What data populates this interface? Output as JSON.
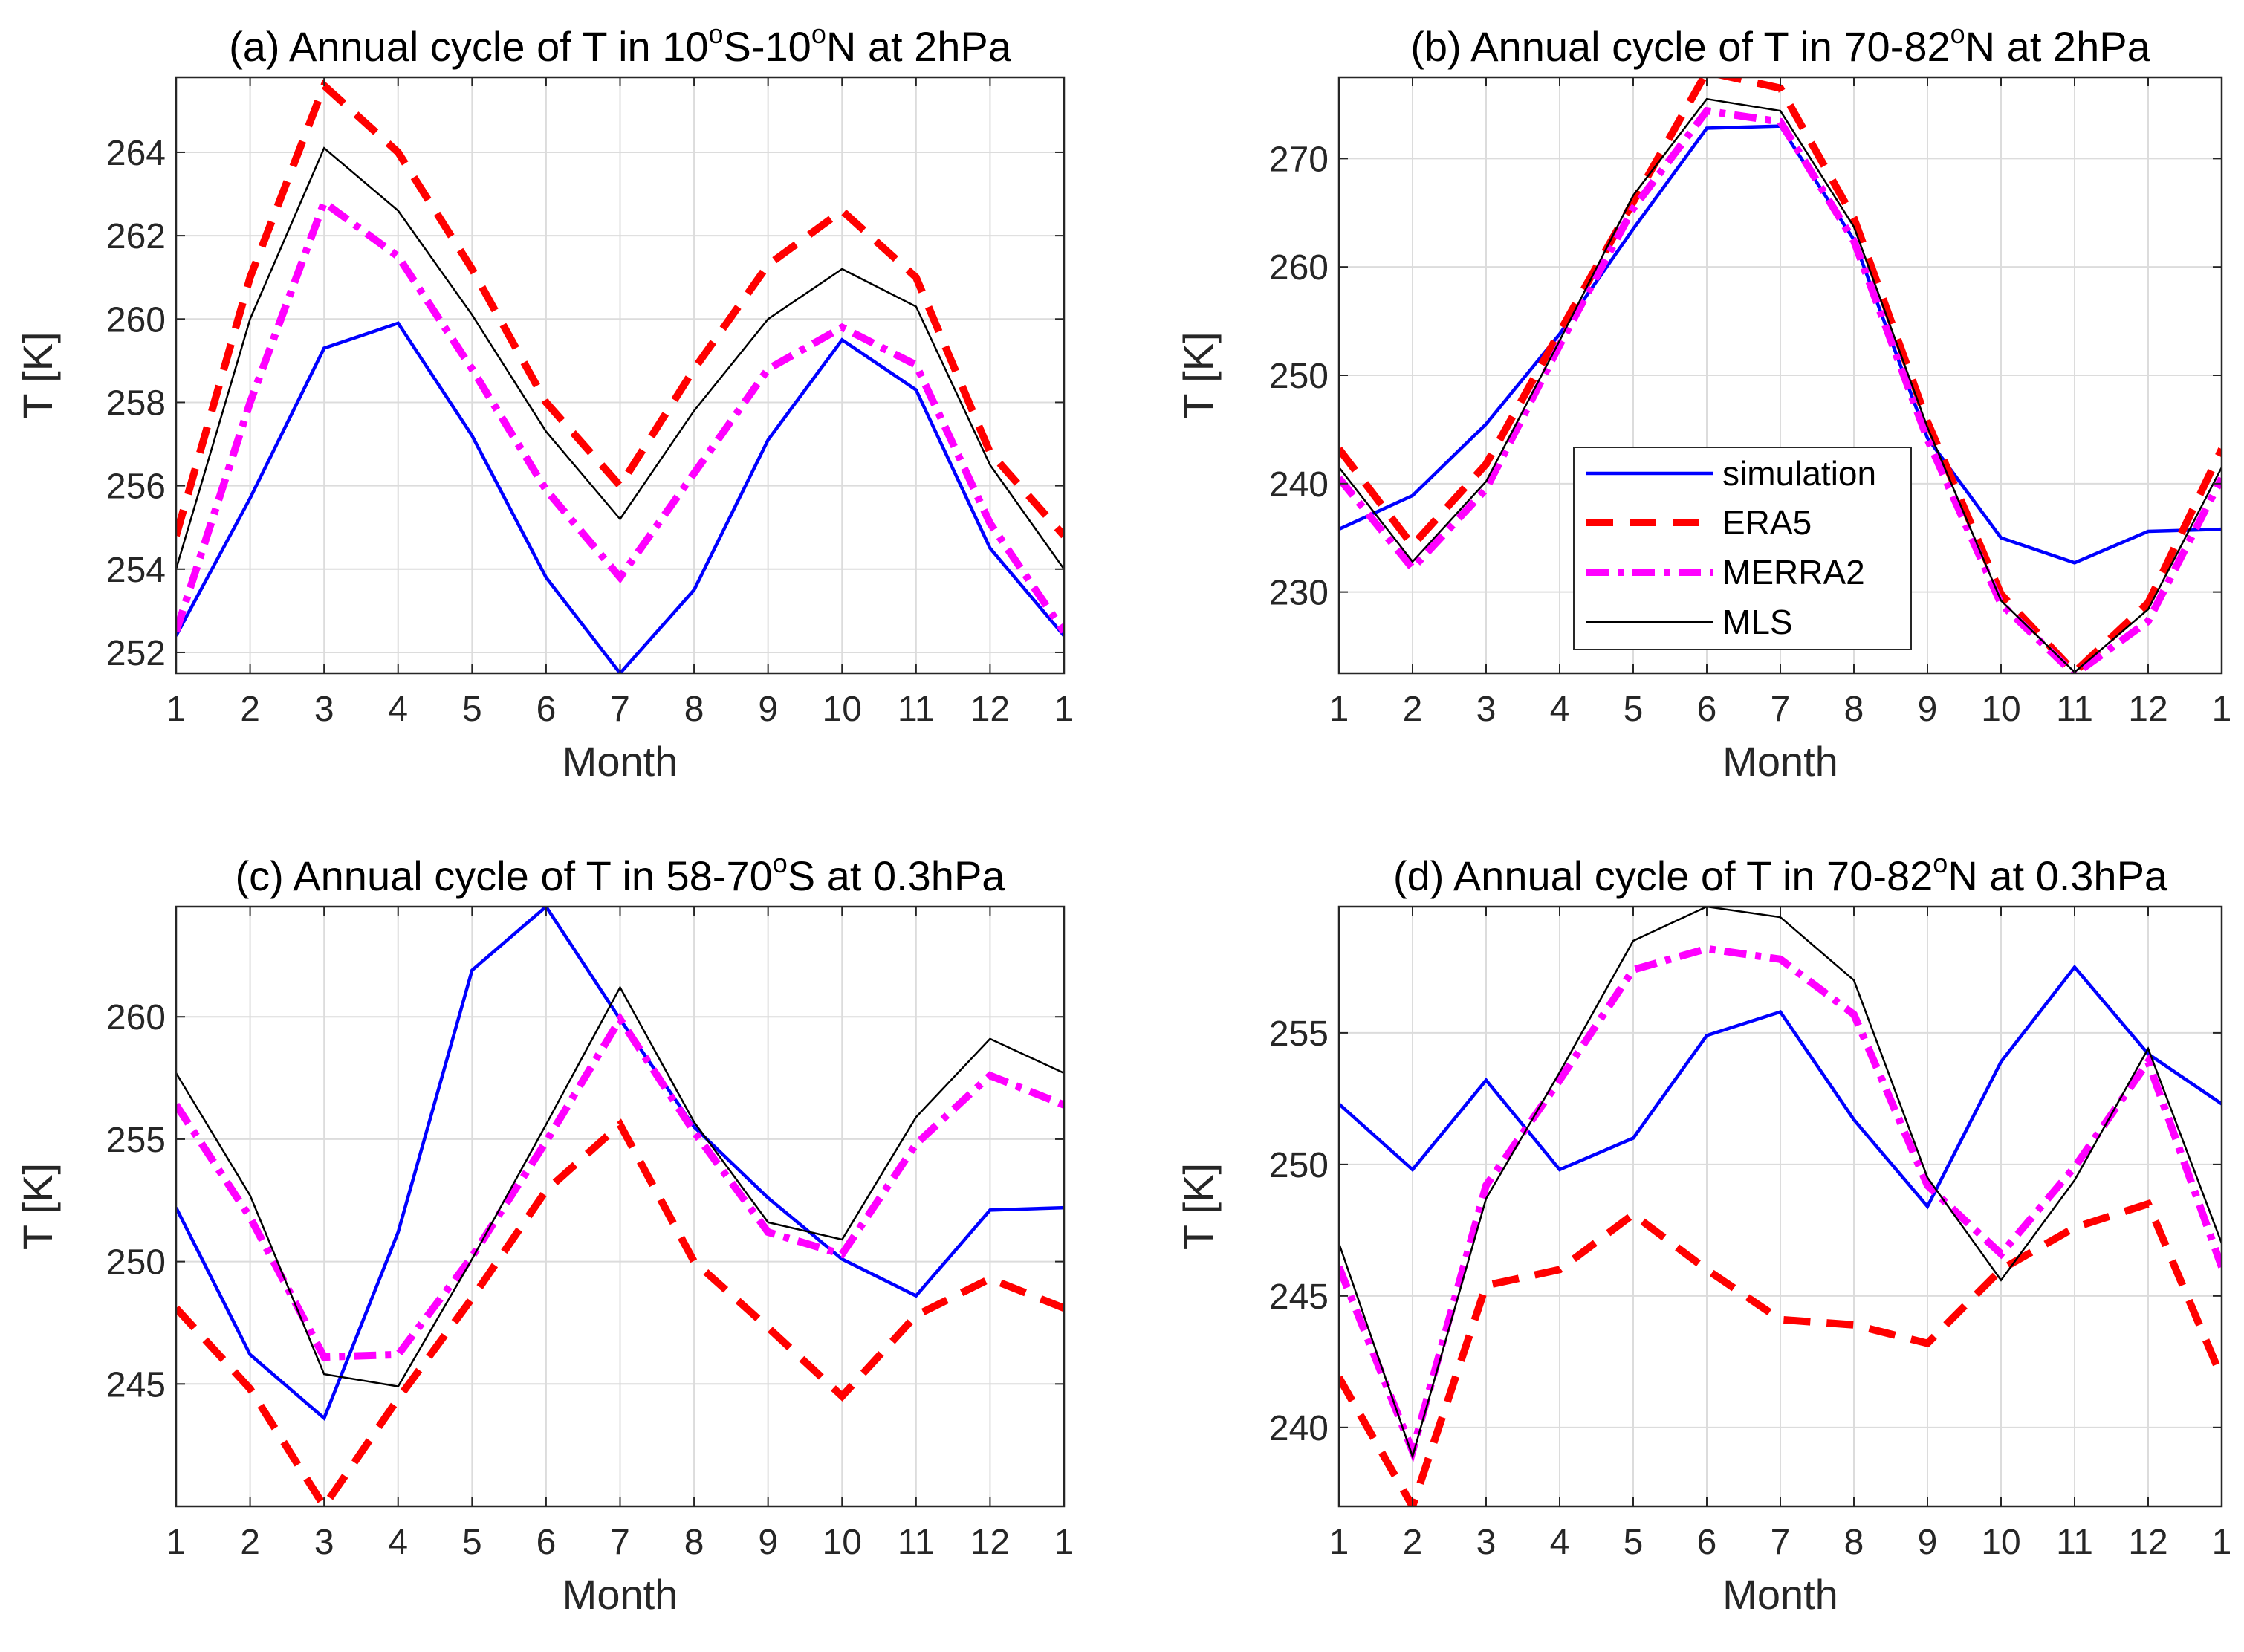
{
  "figure": {
    "legend": {
      "entries": [
        "simulation",
        "ERA5",
        "MERRA2",
        "MLS"
      ],
      "colors": [
        "#0000ff",
        "#ff0000",
        "#ff00ff",
        "#000000"
      ],
      "location": "panel (b), bottom-center"
    }
  },
  "chart_data": [
    {
      "type": "line",
      "panel": "a",
      "title_parts": {
        "pre": "(a) Annual cycle of T in 10",
        "deg1": "o",
        "mid": "S-10",
        "deg2": "o",
        "post": "N at 2hPa"
      },
      "title": "(a) Annual cycle of T in 10°S-10°N at 2hPa",
      "xlabel": "Month",
      "ylabel": "T [K]",
      "x": [
        1,
        2,
        3,
        4,
        5,
        6,
        7,
        8,
        9,
        10,
        11,
        12,
        13
      ],
      "xticklabels": [
        "1",
        "2",
        "3",
        "4",
        "5",
        "6",
        "7",
        "8",
        "9",
        "10",
        "11",
        "12",
        "1"
      ],
      "ylim": [
        251.5,
        265.8
      ],
      "yticks": [
        252,
        254,
        256,
        258,
        260,
        262,
        264
      ],
      "grid": true,
      "series": [
        {
          "name": "simulation",
          "values": [
            252.4,
            255.7,
            259.3,
            259.9,
            257.2,
            253.8,
            251.5,
            253.5,
            257.1,
            259.5,
            258.3,
            254.5,
            252.4
          ]
        },
        {
          "name": "ERA5",
          "values": [
            254.8,
            261.0,
            265.6,
            264.0,
            261.2,
            258.0,
            256.0,
            258.8,
            261.3,
            262.6,
            261.0,
            256.8,
            254.8
          ]
        },
        {
          "name": "MERRA2",
          "values": [
            252.5,
            258.0,
            262.8,
            261.5,
            258.8,
            255.9,
            253.8,
            256.3,
            258.8,
            259.8,
            258.9,
            255.1,
            252.5
          ]
        },
        {
          "name": "MLS",
          "values": [
            254.0,
            260.0,
            264.1,
            262.6,
            260.1,
            257.3,
            255.2,
            257.8,
            260.0,
            261.2,
            260.3,
            256.5,
            254.0
          ]
        }
      ]
    },
    {
      "type": "line",
      "panel": "b",
      "title_parts": {
        "pre": "(b) Annual cycle of T in 70-82",
        "deg1": "o",
        "mid": "N at 2hPa",
        "deg2": "",
        "post": ""
      },
      "title": "(b) Annual cycle of T in 70-82°N at 2hPa",
      "xlabel": "Month",
      "ylabel": "T [K]",
      "x": [
        1,
        2,
        3,
        4,
        5,
        6,
        7,
        8,
        9,
        10,
        11,
        12,
        13
      ],
      "xticklabels": [
        "1",
        "2",
        "3",
        "4",
        "5",
        "6",
        "7",
        "8",
        "9",
        "10",
        "11",
        "12",
        "1"
      ],
      "ylim": [
        222.5,
        277.5
      ],
      "yticks": [
        230,
        240,
        250,
        260,
        270
      ],
      "grid": true,
      "series": [
        {
          "name": "simulation",
          "values": [
            235.8,
            238.9,
            245.5,
            253.8,
            263.5,
            272.8,
            273.0,
            262.5,
            244.2,
            235.0,
            232.7,
            235.6,
            235.8
          ]
        },
        {
          "name": "ERA5",
          "values": [
            243.2,
            234.3,
            241.8,
            254.0,
            266.0,
            278.0,
            276.5,
            264.5,
            245.7,
            229.8,
            222.6,
            229.0,
            243.2
          ]
        },
        {
          "name": "MERRA2",
          "values": [
            240.5,
            232.2,
            239.5,
            252.8,
            265.4,
            274.4,
            273.4,
            262.4,
            244.1,
            228.9,
            222.4,
            227.3,
            240.5
          ]
        },
        {
          "name": "MLS",
          "values": [
            241.5,
            232.8,
            240.2,
            253.2,
            266.6,
            275.5,
            274.4,
            263.7,
            245.2,
            229.2,
            222.6,
            228.4,
            241.5
          ]
        }
      ]
    },
    {
      "type": "line",
      "panel": "c",
      "title_parts": {
        "pre": "(c) Annual cycle of T in 58-70",
        "deg1": "o",
        "mid": "S at 0.3hPa",
        "deg2": "",
        "post": ""
      },
      "title": "(c) Annual cycle of T in 58-70°S at 0.3hPa",
      "xlabel": "Month",
      "ylabel": "T [K]",
      "x": [
        1,
        2,
        3,
        4,
        5,
        6,
        7,
        8,
        9,
        10,
        11,
        12,
        13
      ],
      "xticklabels": [
        "1",
        "2",
        "3",
        "4",
        "5",
        "6",
        "7",
        "8",
        "9",
        "10",
        "11",
        "12",
        "1"
      ],
      "ylim": [
        240.0,
        264.5
      ],
      "yticks": [
        245,
        250,
        255,
        260
      ],
      "grid": true,
      "series": [
        {
          "name": "simulation",
          "values": [
            252.2,
            246.2,
            243.6,
            251.2,
            261.9,
            264.5,
            259.9,
            255.5,
            252.6,
            250.1,
            248.6,
            252.1,
            252.2
          ]
        },
        {
          "name": "ERA5",
          "values": [
            248.1,
            244.8,
            240.0,
            244.4,
            248.5,
            252.9,
            255.6,
            250.0,
            247.3,
            244.5,
            247.8,
            249.3,
            248.1
          ]
        },
        {
          "name": "MERRA2",
          "values": [
            256.4,
            251.8,
            246.1,
            246.2,
            250.2,
            254.9,
            259.9,
            255.3,
            251.2,
            250.3,
            254.8,
            257.6,
            256.4
          ]
        },
        {
          "name": "MLS",
          "values": [
            257.7,
            252.7,
            245.4,
            244.9,
            250.1,
            255.6,
            261.2,
            255.7,
            251.6,
            250.9,
            255.9,
            259.1,
            257.7
          ]
        }
      ]
    },
    {
      "type": "line",
      "panel": "d",
      "title_parts": {
        "pre": "(d) Annual cycle of T in 70-82",
        "deg1": "o",
        "mid": "N at 0.3hPa",
        "deg2": "",
        "post": ""
      },
      "title": "(d) Annual cycle of T in 70-82°N at 0.3hPa",
      "xlabel": "Month",
      "ylabel": "T [K]",
      "x": [
        1,
        2,
        3,
        4,
        5,
        6,
        7,
        8,
        9,
        10,
        11,
        12,
        13
      ],
      "xticklabels": [
        "1",
        "2",
        "3",
        "4",
        "5",
        "6",
        "7",
        "8",
        "9",
        "10",
        "11",
        "12",
        "1"
      ],
      "ylim": [
        237.0,
        259.8
      ],
      "yticks": [
        240,
        245,
        250,
        255
      ],
      "grid": true,
      "series": [
        {
          "name": "simulation",
          "values": [
            252.3,
            249.8,
            253.2,
            249.8,
            251.0,
            254.9,
            255.8,
            251.7,
            248.4,
            253.9,
            257.5,
            254.2,
            252.3
          ]
        },
        {
          "name": "ERA5",
          "values": [
            241.9,
            237.0,
            245.4,
            246.0,
            248.1,
            246.0,
            244.1,
            243.9,
            243.2,
            246.0,
            247.6,
            248.5,
            241.9
          ]
        },
        {
          "name": "MERRA2",
          "values": [
            246.1,
            239.1,
            249.2,
            253.2,
            257.4,
            258.2,
            257.8,
            255.7,
            249.2,
            246.6,
            249.9,
            253.9,
            246.1
          ]
        },
        {
          "name": "MLS",
          "values": [
            247.0,
            238.9,
            248.7,
            253.5,
            258.5,
            259.8,
            259.4,
            257.0,
            249.5,
            245.6,
            249.4,
            254.4,
            247.0
          ]
        }
      ]
    }
  ]
}
